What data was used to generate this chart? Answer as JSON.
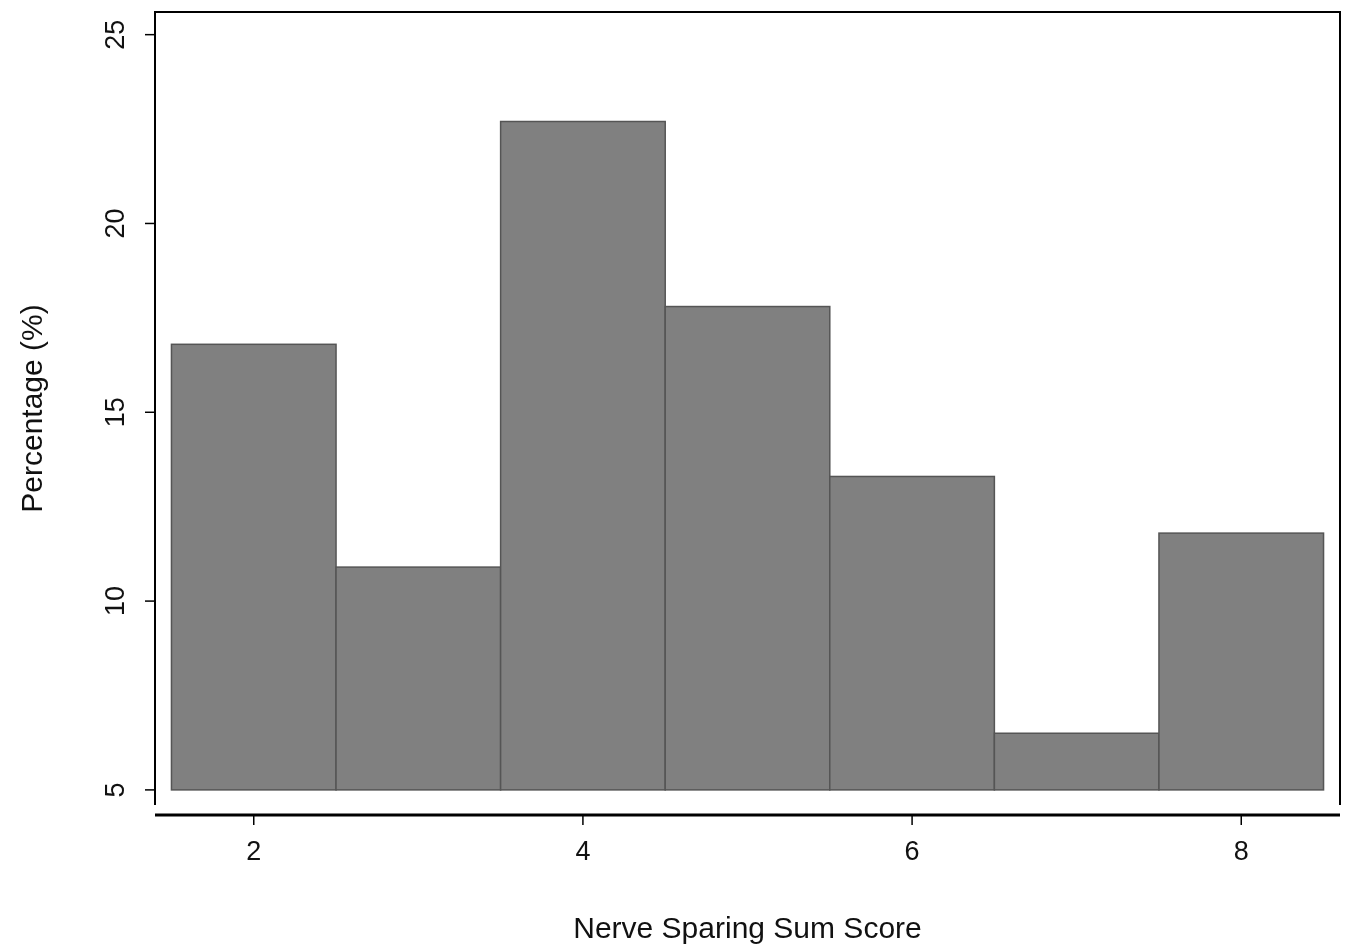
{
  "chart_data": {
    "type": "histogram",
    "xlabel": "Nerve Sparing Sum Score",
    "ylabel": "Percentage (%)",
    "bins": [
      1.5,
      2.5,
      3.5,
      4.5,
      5.5,
      6.5,
      7.5,
      8.5
    ],
    "base": [
      5,
      5,
      5,
      5,
      5,
      5,
      5
    ],
    "values": [
      11.8,
      5.9,
      17.7,
      12.8,
      8.3,
      1.5,
      6.8
    ],
    "color": "#808080",
    "xlim": [
      1.4,
      8.6
    ],
    "xticks": [
      2,
      4,
      6,
      8
    ],
    "ylim": [
      4.6,
      25.6
    ],
    "yticks": [
      5,
      10,
      15,
      20,
      25
    ],
    "grid": false
  }
}
